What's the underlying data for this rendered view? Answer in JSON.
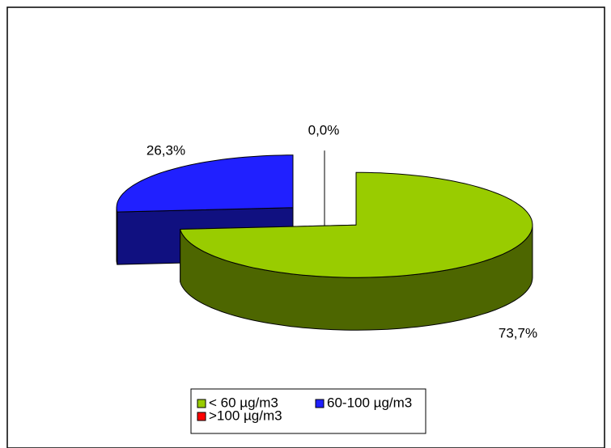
{
  "chart_data": {
    "type": "pie",
    "categories": [
      "< 60 µg/m3",
      "60-100 µg/m3",
      ">100 µg/m3"
    ],
    "values": [
      73.7,
      26.3,
      0.0
    ],
    "value_labels": [
      "73,7%",
      "26,3%",
      "0,0%"
    ],
    "colors": [
      "#99cc00",
      "#2020ff",
      "#ff0000"
    ],
    "legend": "bottom"
  }
}
